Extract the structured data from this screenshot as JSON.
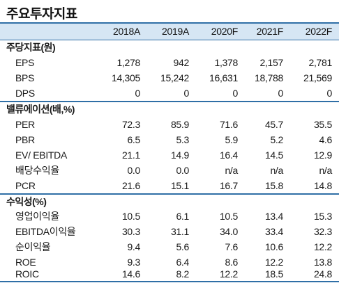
{
  "title": "주요투자지표",
  "columns": [
    "2018A",
    "2019A",
    "2020F",
    "2021F",
    "2022F"
  ],
  "sections": [
    {
      "label": "주당지표(원)",
      "rows": [
        {
          "name": "EPS",
          "values": [
            "1,278",
            "942",
            "1,378",
            "2,157",
            "2,781"
          ]
        },
        {
          "name": "BPS",
          "values": [
            "14,305",
            "15,242",
            "16,631",
            "18,788",
            "21,569"
          ]
        },
        {
          "name": "DPS",
          "values": [
            "0",
            "0",
            "0",
            "0",
            "0"
          ]
        }
      ]
    },
    {
      "label": "밸류에이션(배,%)",
      "rows": [
        {
          "name": "PER",
          "values": [
            "72.3",
            "85.9",
            "71.6",
            "45.7",
            "35.5"
          ]
        },
        {
          "name": "PBR",
          "values": [
            "6.5",
            "5.3",
            "5.9",
            "5.2",
            "4.6"
          ]
        },
        {
          "name": "EV/ EBITDA",
          "values": [
            "21.1",
            "14.9",
            "16.4",
            "14.5",
            "12.9"
          ]
        },
        {
          "name": "배당수익율",
          "values": [
            "0.0",
            "0.0",
            "n/a",
            "n/a",
            "n/a"
          ]
        },
        {
          "name": "PCR",
          "values": [
            "21.6",
            "15.1",
            "16.7",
            "15.8",
            "14.8"
          ]
        }
      ]
    },
    {
      "label": "수익성(%)",
      "rows": [
        {
          "name": "영업이익율",
          "values": [
            "10.5",
            "6.1",
            "10.5",
            "13.4",
            "15.3"
          ]
        },
        {
          "name": "EBITDA이익율",
          "values": [
            "30.3",
            "31.1",
            "34.0",
            "33.4",
            "32.3"
          ]
        },
        {
          "name": "순이익율",
          "values": [
            "9.4",
            "5.6",
            "7.6",
            "10.6",
            "12.2"
          ]
        },
        {
          "name": "ROE",
          "values": [
            "9.3",
            "6.4",
            "8.6",
            "12.2",
            "13.8"
          ]
        },
        {
          "name": "ROIC",
          "values": [
            "14.6",
            "8.2",
            "12.2",
            "18.5",
            "24.8"
          ]
        }
      ]
    }
  ]
}
